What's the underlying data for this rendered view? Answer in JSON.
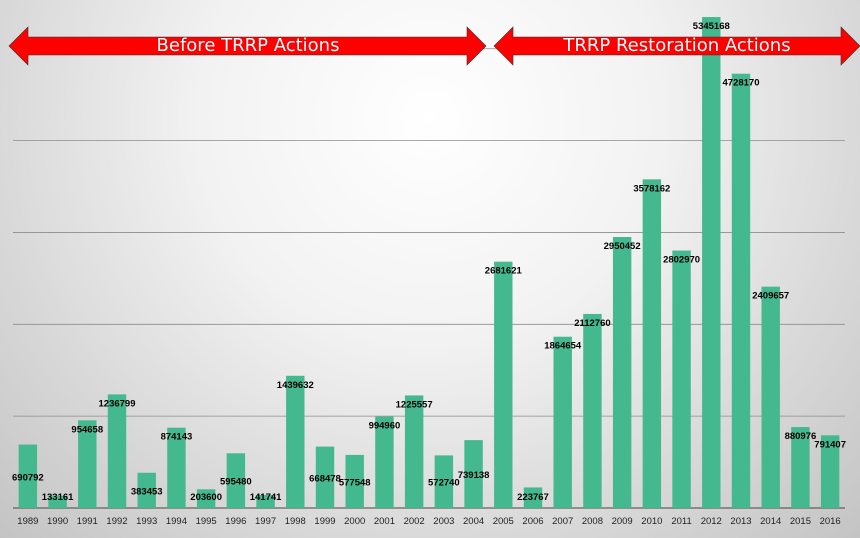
{
  "banners": {
    "before_label": "Before TRRP Actions",
    "after_label": "TRRP Restoration Actions",
    "arrow_color": "#ff0000"
  },
  "colors": {
    "bar": "#44b990",
    "gridline": "#8c8c8c",
    "baseline": "#444444",
    "label_text": "#000000"
  },
  "chart_data": {
    "type": "bar",
    "title": "",
    "xlabel": "",
    "ylabel": "",
    "ylim": [
      0,
      5400000
    ],
    "grid": true,
    "legend": "none",
    "gridline_step": 1000000,
    "categories": [
      "1989",
      "1990",
      "1991",
      "1992",
      "1993",
      "1994",
      "1995",
      "1996",
      "1997",
      "1998",
      "1999",
      "2000",
      "2001",
      "2002",
      "2003",
      "2004",
      "2005",
      "2006",
      "2007",
      "2008",
      "2009",
      "2010",
      "2011",
      "2012",
      "2013",
      "2014",
      "2015",
      "2016"
    ],
    "values": [
      690792,
      133161,
      954658,
      1236799,
      383453,
      874143,
      203600,
      595480,
      141741,
      1439632,
      668478,
      577548,
      994960,
      1225557,
      572740,
      739138,
      2681621,
      223767,
      1864654,
      2112760,
      2950452,
      3578162,
      2802970,
      5345168,
      4728170,
      2409657,
      880976,
      791407
    ]
  }
}
